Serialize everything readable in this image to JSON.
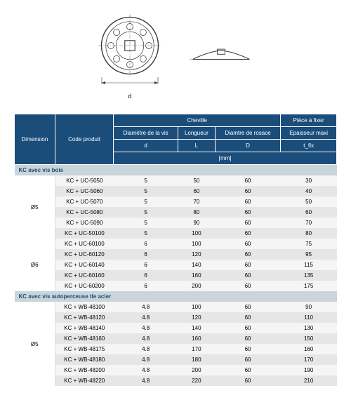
{
  "headers": {
    "dimension": "Dimension",
    "code": "Code produit",
    "cheville": "Cheville",
    "piece": "Pièce à fixer",
    "dia_vis": "Diamètre de la vis",
    "longueur": "Longueur",
    "dia_rosace": "Diamtre de rosace",
    "epaisseur": "Epaisseur maxi",
    "d": "d",
    "L": "L",
    "D": "D",
    "tfix": "t_fix",
    "mm": "[mm]"
  },
  "sections": [
    {
      "title": "KC avec vis bois",
      "groups": [
        {
          "dim": "Ø5",
          "rows": [
            {
              "code": "KC + UC-5050",
              "d": "5",
              "L": "50",
              "D": "60",
              "t": "30"
            },
            {
              "code": "KC + UC-5060",
              "d": "5",
              "L": "60",
              "D": "60",
              "t": "40"
            },
            {
              "code": "KC + UC-5070",
              "d": "5",
              "L": "70",
              "D": "60",
              "t": "50"
            },
            {
              "code": "KC + UC-5080",
              "d": "5",
              "L": "80",
              "D": "60",
              "t": "60"
            },
            {
              "code": "KC + UC-5090",
              "d": "5",
              "L": "90",
              "D": "60",
              "t": "70"
            },
            {
              "code": "KC + UC-50100",
              "d": "5",
              "L": "100",
              "D": "60",
              "t": "80"
            }
          ]
        },
        {
          "dim": "Ø6",
          "rows": [
            {
              "code": "KC + UC-60100",
              "d": "6",
              "L": "100",
              "D": "60",
              "t": "75"
            },
            {
              "code": "KC + UC-60120",
              "d": "6",
              "L": "120",
              "D": "60",
              "t": "95"
            },
            {
              "code": "KC + UC-60140",
              "d": "6",
              "L": "140",
              "D": "60",
              "t": "115"
            },
            {
              "code": "KC + UC-60160",
              "d": "6",
              "L": "160",
              "D": "60",
              "t": "135"
            },
            {
              "code": "KC + UC-60200",
              "d": "6",
              "L": "200",
              "D": "60",
              "t": "175"
            }
          ]
        }
      ]
    },
    {
      "title": "KC avec vis autoperceuse tle acier",
      "groups": [
        {
          "dim": "Ø5",
          "rows": [
            {
              "code": "KC + WB-48100",
              "d": "4.8",
              "L": "100",
              "D": "60",
              "t": "90"
            },
            {
              "code": "KC + WB-48120",
              "d": "4.8",
              "L": "120",
              "D": "60",
              "t": "110"
            },
            {
              "code": "KC + WB-48140",
              "d": "4.8",
              "L": "140",
              "D": "60",
              "t": "130"
            },
            {
              "code": "KC + WB-48160",
              "d": "4.8",
              "L": "160",
              "D": "60",
              "t": "150"
            },
            {
              "code": "KC + WB-48175",
              "d": "4.8",
              "L": "170",
              "D": "60",
              "t": "160"
            },
            {
              "code": "KC + WB-48180",
              "d": "4.8",
              "L": "180",
              "D": "60",
              "t": "170"
            },
            {
              "code": "KC + WB-48200",
              "d": "4.8",
              "L": "200",
              "D": "60",
              "t": "190"
            },
            {
              "code": "KC + WB-48220",
              "d": "4.8",
              "L": "220",
              "D": "60",
              "t": "210"
            }
          ]
        }
      ]
    }
  ]
}
